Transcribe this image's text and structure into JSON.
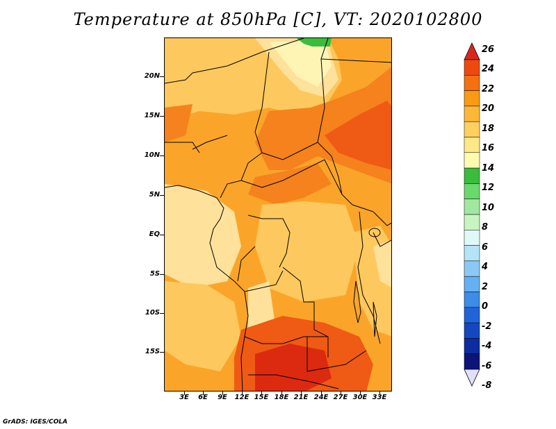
{
  "title": "Temperature at 850hPa [C], VT: 2020102800",
  "credit": "GrADS: IGES/COLA",
  "y_axis_labels": [
    "20N",
    "15N",
    "10N",
    "5N",
    "EQ",
    "5S",
    "10S",
    "15S"
  ],
  "x_axis_labels": [
    "3E",
    "6E",
    "9E",
    "12E",
    "15E",
    "18E",
    "21E",
    "24E",
    "27E",
    "30E",
    "33E"
  ],
  "colorbar": {
    "labels": [
      "26",
      "24",
      "22",
      "20",
      "18",
      "16",
      "14",
      "12",
      "10",
      "8",
      "6",
      "4",
      "2",
      "0",
      "-2",
      "-4",
      "-6",
      "-8"
    ],
    "colors_top_to_bottom": [
      "#d8281e",
      "#ee4a10",
      "#f47010",
      "#f99a14",
      "#fbb838",
      "#fdd060",
      "#fde888",
      "#fefab0",
      "#3cbc3c",
      "#6ad86a",
      "#a0e8a0",
      "#c8f4c0",
      "#e0f8f8",
      "#b4e4f8",
      "#8cc8f4",
      "#64b0f0",
      "#3c8ce8",
      "#2064d8",
      "#1448c0",
      "#0c2ca0",
      "#0c1478",
      "#e0e0f8"
    ]
  },
  "map": {
    "region": "Central Africa",
    "field_colors": {
      "c14": "#fef5b4",
      "c16": "#fee19a",
      "c18": "#fdc85e",
      "c20": "#faa52a",
      "c22": "#f5821c",
      "c24": "#ef5a14",
      "c26": "#dc2a10",
      "green": "#3cbc3c"
    }
  }
}
